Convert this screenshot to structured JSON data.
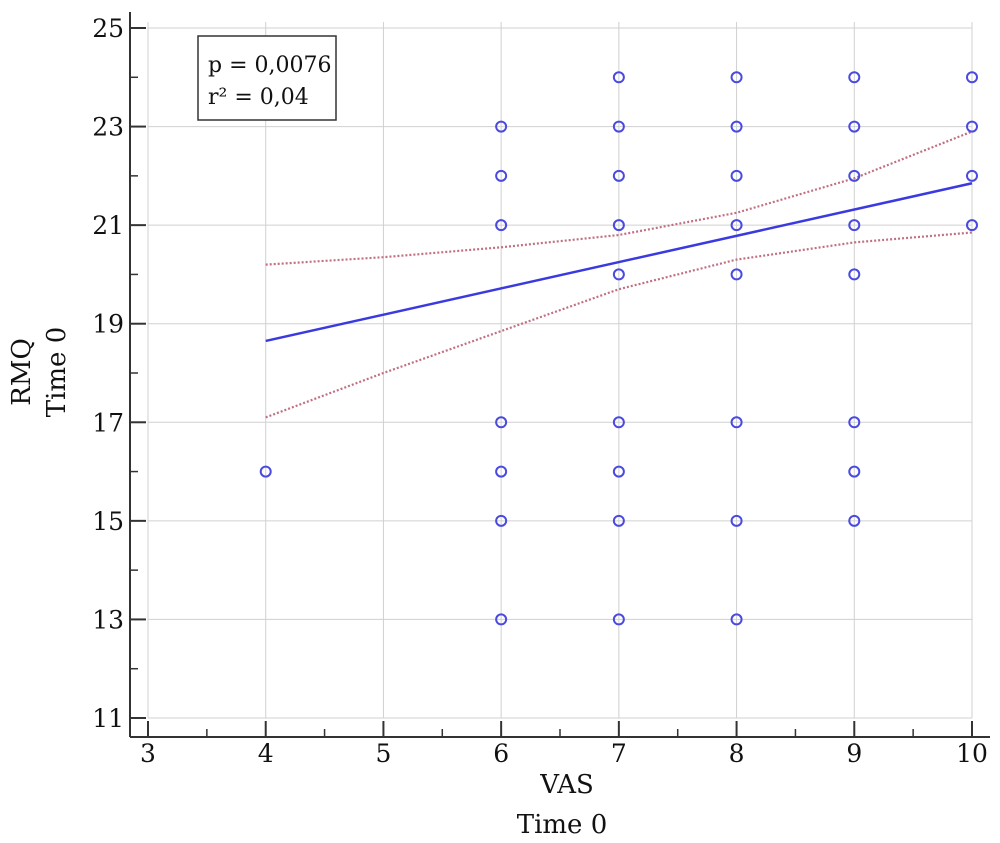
{
  "chart_data": {
    "type": "scatter",
    "title": "",
    "xlabel": [
      "VAS",
      "Time 0"
    ],
    "ylabel": [
      "RMQ",
      "Time 0"
    ],
    "xlim": [
      3,
      10
    ],
    "ylim": [
      11,
      25
    ],
    "xticks": [
      3,
      4,
      5,
      6,
      7,
      8,
      9,
      10
    ],
    "yticks": [
      11,
      13,
      15,
      17,
      19,
      21,
      23,
      25
    ],
    "grid": true,
    "annotation": [
      "p = 0,0076",
      "r² = 0,04"
    ],
    "colors": {
      "points": "#4a4ae0",
      "fit": "#3a3ae0",
      "ci": "#c07080",
      "grid": "#d0d0d0",
      "axis": "#333333"
    },
    "points": [
      {
        "x": 4,
        "y": 16
      },
      {
        "x": 6,
        "y": 23
      },
      {
        "x": 6,
        "y": 22
      },
      {
        "x": 6,
        "y": 21
      },
      {
        "x": 6,
        "y": 17
      },
      {
        "x": 6,
        "y": 16
      },
      {
        "x": 6,
        "y": 15
      },
      {
        "x": 6,
        "y": 13
      },
      {
        "x": 7,
        "y": 24
      },
      {
        "x": 7,
        "y": 23
      },
      {
        "x": 7,
        "y": 22
      },
      {
        "x": 7,
        "y": 21
      },
      {
        "x": 7,
        "y": 20
      },
      {
        "x": 7,
        "y": 17
      },
      {
        "x": 7,
        "y": 16
      },
      {
        "x": 7,
        "y": 15
      },
      {
        "x": 7,
        "y": 13
      },
      {
        "x": 8,
        "y": 24
      },
      {
        "x": 8,
        "y": 23
      },
      {
        "x": 8,
        "y": 22
      },
      {
        "x": 8,
        "y": 21
      },
      {
        "x": 8,
        "y": 20
      },
      {
        "x": 8,
        "y": 17
      },
      {
        "x": 8,
        "y": 15
      },
      {
        "x": 8,
        "y": 13
      },
      {
        "x": 9,
        "y": 24
      },
      {
        "x": 9,
        "y": 23
      },
      {
        "x": 9,
        "y": 22
      },
      {
        "x": 9,
        "y": 21
      },
      {
        "x": 9,
        "y": 20
      },
      {
        "x": 9,
        "y": 17
      },
      {
        "x": 9,
        "y": 16
      },
      {
        "x": 9,
        "y": 15
      },
      {
        "x": 10,
        "y": 24
      },
      {
        "x": 10,
        "y": 23
      },
      {
        "x": 10,
        "y": 22
      },
      {
        "x": 10,
        "y": 21
      }
    ],
    "regression_line": [
      {
        "x": 4,
        "y": 18.65
      },
      {
        "x": 10,
        "y": 21.85
      }
    ],
    "ci_upper": [
      {
        "x": 4,
        "y": 20.2
      },
      {
        "x": 5,
        "y": 20.35
      },
      {
        "x": 6,
        "y": 20.55
      },
      {
        "x": 7,
        "y": 20.8
      },
      {
        "x": 8,
        "y": 21.25
      },
      {
        "x": 9,
        "y": 21.95
      },
      {
        "x": 10,
        "y": 22.9
      }
    ],
    "ci_lower": [
      {
        "x": 4,
        "y": 17.1
      },
      {
        "x": 5,
        "y": 18.0
      },
      {
        "x": 6,
        "y": 18.85
      },
      {
        "x": 7,
        "y": 19.7
      },
      {
        "x": 8,
        "y": 20.3
      },
      {
        "x": 9,
        "y": 20.65
      },
      {
        "x": 10,
        "y": 20.85
      }
    ]
  }
}
